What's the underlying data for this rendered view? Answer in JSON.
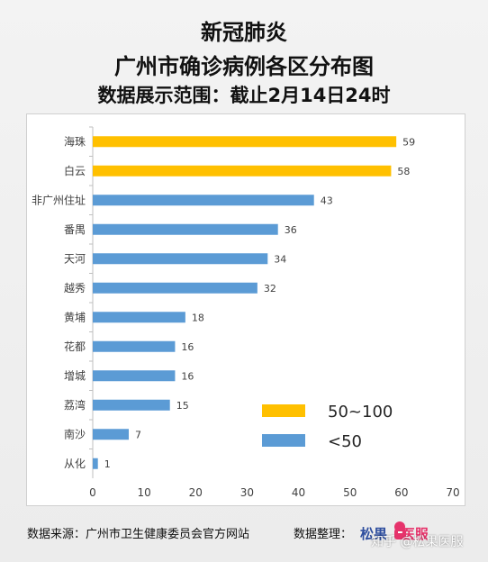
{
  "header": {
    "title_line1": "新冠肺炎",
    "title_line2": "广州市确诊病例各区分布图",
    "title_line3": "数据展示范围：截止2月14日24时"
  },
  "footer": {
    "source": "数据来源：广州市卫生健康委员会官方网站",
    "organizer": "数据整理：",
    "logo_text": "松果医服",
    "watermark": "知乎 @松果医服"
  },
  "colors": {
    "high": "#FFC000",
    "low": "#5B9BD5"
  },
  "chart_data": {
    "type": "bar",
    "orientation": "horizontal",
    "categories": [
      "海珠",
      "白云",
      "非广州住址",
      "番禺",
      "天河",
      "越秀",
      "黄埔",
      "花都",
      "增城",
      "荔湾",
      "南沙",
      "从化"
    ],
    "values": [
      59,
      58,
      43,
      36,
      34,
      32,
      18,
      16,
      16,
      15,
      7,
      1
    ],
    "groups": [
      "high",
      "high",
      "low",
      "low",
      "low",
      "low",
      "low",
      "low",
      "low",
      "low",
      "low",
      "low"
    ],
    "xlim": [
      0,
      70
    ],
    "xticks": [
      0,
      10,
      20,
      30,
      40,
      50,
      60,
      70
    ],
    "grid": false,
    "legend_position": "bottom-right",
    "legend": [
      {
        "key": "high",
        "label": "50~100"
      },
      {
        "key": "low",
        "label": "<50"
      }
    ]
  }
}
